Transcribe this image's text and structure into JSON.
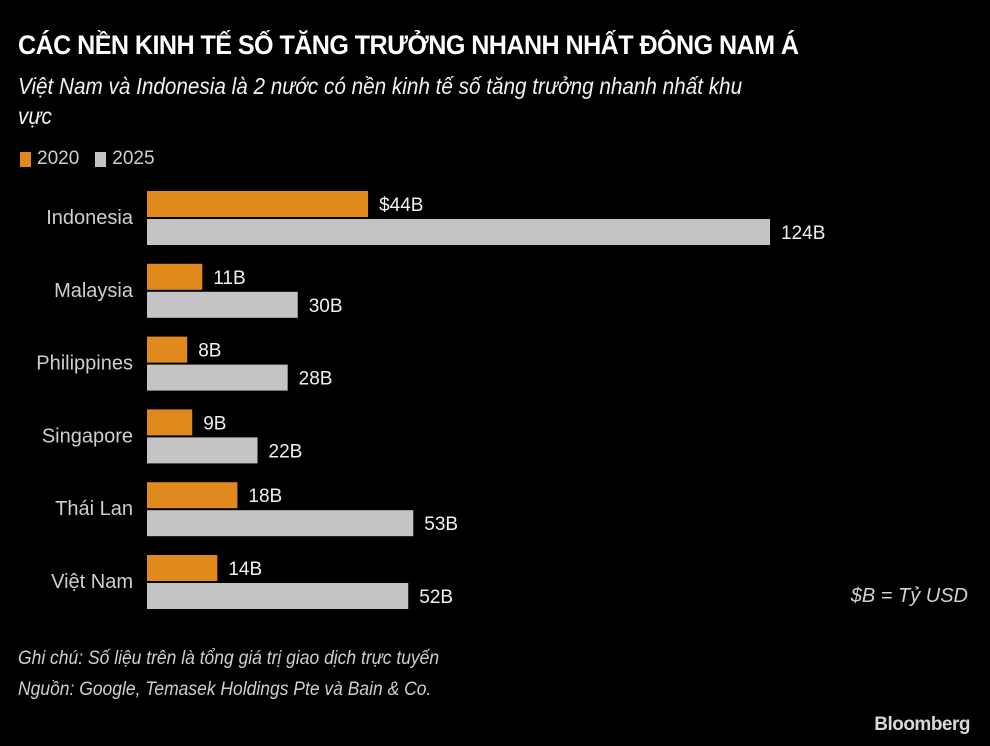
{
  "chart_data": {
    "type": "bar",
    "orientation": "horizontal",
    "title": "CÁC NỀN KINH TẾ SỐ TĂNG TRƯỞNG NHANH NHẤT ĐÔNG NAM Á",
    "subtitle": "Việt Nam và Indonesia là 2 nước có nền kinh tế số tăng trưởng nhanh nhất khu vực",
    "categories": [
      "Indonesia",
      "Malaysia",
      "Philippines",
      "Singapore",
      "Thái Lan",
      "Việt Nam"
    ],
    "series": [
      {
        "name": "2020",
        "color": "#e08a1e",
        "values": [
          44,
          11,
          8,
          9,
          18,
          14
        ],
        "labels": [
          "$44B",
          "11B",
          "8B",
          "9B",
          "18B",
          "14B"
        ]
      },
      {
        "name": "2025",
        "color": "#c4c4c4",
        "values": [
          124,
          30,
          28,
          22,
          53,
          52
        ],
        "labels": [
          "124B",
          "30B",
          "28B",
          "22B",
          "53B",
          "52B"
        ]
      }
    ],
    "legend_position": "top-left",
    "grid": false,
    "unit_note": "$B = Tỷ USD",
    "note": "Ghi chú: Số  liệu trên là tổng giá trị giao dịch trực tuyến",
    "source": "Nguồn: Google, Temasek Holdings Pte và Bain & Co.",
    "logo": "Bloomberg"
  }
}
